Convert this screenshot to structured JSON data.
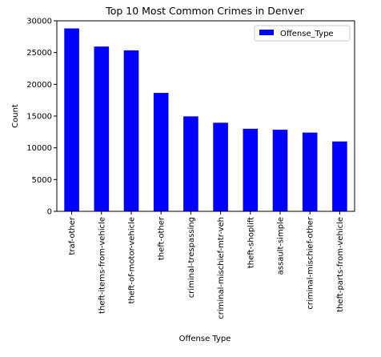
{
  "chart_data": {
    "type": "bar",
    "title": "Top 10 Most Common Crimes in Denver",
    "xlabel": "Offense Type",
    "ylabel": "Count",
    "categories": [
      "traf-other",
      "theft-items-from-vehicle",
      "theft-of-motor-vehicle",
      "theft-other",
      "criminal-trespassing",
      "criminal-mischief-mtr-veh",
      "theft-shoplift",
      "assault-simple",
      "criminal-mischief-other",
      "theft-parts-from-vehicle"
    ],
    "series": [
      {
        "name": "Offense_Type",
        "values": [
          28800,
          25950,
          25350,
          18650,
          14950,
          13950,
          13000,
          12850,
          12400,
          11000
        ],
        "color": "#0000ff"
      }
    ],
    "ylim": [
      0,
      30000
    ],
    "yticks": [
      0,
      5000,
      10000,
      15000,
      20000,
      25000,
      30000
    ],
    "grid": false,
    "legend_position": "top-right"
  }
}
